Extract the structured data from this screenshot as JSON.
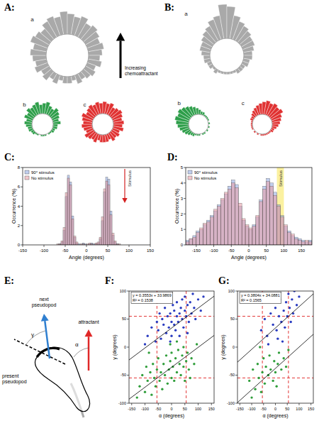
{
  "panel_labels": [
    "A:",
    "B:",
    "C:",
    "D:",
    "E:",
    "F:",
    "G:"
  ],
  "chart_data": [
    {
      "type": "rose",
      "title": "a",
      "color": "#a9a9a9",
      "annotation": "Increasing chemoattractant",
      "bins": [
        -180,
        -170,
        -160,
        -150,
        -140,
        -130,
        -120,
        -110,
        -100,
        -90,
        -80,
        -70,
        -60,
        -50,
        -40,
        -30,
        -20,
        -10,
        0,
        10,
        20,
        30,
        40,
        50,
        60,
        70,
        80,
        90,
        100,
        110,
        120,
        130,
        140,
        150,
        160,
        170,
        180
      ],
      "values": [
        3,
        2,
        4,
        3,
        5,
        4,
        6,
        5,
        6,
        7,
        6,
        8,
        7,
        6,
        8,
        9,
        8,
        10,
        9,
        8,
        9,
        7,
        8,
        7,
        6,
        7,
        6,
        5,
        6,
        4,
        5,
        4,
        3,
        4,
        2,
        3
      ],
      "ylim": [
        0,
        10
      ]
    },
    {
      "type": "rose",
      "title": "b",
      "color": "#2e9e4a",
      "bins": [
        -180,
        -170,
        -160,
        -150,
        -140,
        -130,
        -120,
        -110,
        -100,
        -90,
        -80,
        -70,
        -60,
        -50,
        -40,
        -30,
        -20,
        -10,
        0,
        10,
        20,
        30,
        40,
        50,
        60,
        70,
        80,
        90,
        100,
        110,
        120,
        130,
        140,
        150,
        160,
        170,
        180
      ],
      "values": [
        1,
        0,
        1,
        1,
        2,
        2,
        3,
        3,
        4,
        5,
        4,
        6,
        5,
        7,
        6,
        7,
        8,
        6,
        7,
        8,
        6,
        5,
        7,
        6,
        5,
        4,
        5,
        3,
        3,
        2,
        2,
        1,
        1,
        0,
        1,
        1
      ],
      "ylim": [
        0,
        8
      ]
    },
    {
      "type": "rose",
      "title": "c",
      "color": "#e03232",
      "bins": [
        -180,
        -170,
        -160,
        -150,
        -140,
        -130,
        -120,
        -110,
        -100,
        -90,
        -80,
        -70,
        -60,
        -50,
        -40,
        -30,
        -20,
        -10,
        0,
        10,
        20,
        30,
        40,
        50,
        60,
        70,
        80,
        90,
        100,
        110,
        120,
        130,
        140,
        150,
        160,
        170,
        180
      ],
      "values": [
        5,
        4,
        6,
        5,
        6,
        7,
        5,
        6,
        7,
        6,
        7,
        8,
        6,
        7,
        8,
        7,
        8,
        7,
        8,
        7,
        8,
        6,
        7,
        8,
        7,
        6,
        7,
        6,
        7,
        5,
        6,
        5,
        6,
        4,
        5,
        5
      ],
      "ylim": [
        0,
        8
      ]
    },
    {
      "type": "rose",
      "title": "a",
      "color": "#a9a9a9",
      "bins": [
        -180,
        -170,
        -160,
        -150,
        -140,
        -130,
        -120,
        -110,
        -100,
        -90,
        -80,
        -70,
        -60,
        -50,
        -40,
        -30,
        -20,
        -10,
        0,
        10,
        20,
        30,
        40,
        50,
        60,
        70,
        80,
        90,
        100,
        110,
        120,
        130,
        140,
        150,
        160,
        170,
        180
      ],
      "values": [
        1,
        1,
        1,
        2,
        1,
        2,
        2,
        3,
        3,
        4,
        5,
        5,
        6,
        7,
        8,
        10,
        11,
        16,
        15,
        11,
        9,
        8,
        7,
        6,
        6,
        5,
        4,
        4,
        3,
        3,
        2,
        2,
        2,
        1,
        1,
        1
      ],
      "ylim": [
        0,
        16
      ]
    },
    {
      "type": "rose",
      "title": "b",
      "color": "#2e9e4a",
      "bins": [
        -180,
        -170,
        -160,
        -150,
        -140,
        -130,
        -120,
        -110,
        -100,
        -90,
        -80,
        -70,
        -60,
        -50,
        -40,
        -30,
        -20,
        -10,
        0,
        10,
        20,
        30,
        40,
        50,
        60,
        70,
        80,
        90,
        100,
        110,
        120,
        130,
        140,
        150,
        160,
        170,
        180
      ],
      "values": [
        1,
        1,
        2,
        2,
        3,
        4,
        5,
        6,
        7,
        8,
        9,
        8,
        9,
        8,
        7,
        6,
        5,
        4,
        3,
        2,
        2,
        1,
        1,
        1,
        1,
        0,
        1,
        0,
        1,
        0,
        1,
        0,
        1,
        1,
        0,
        1
      ],
      "ylim": [
        0,
        9
      ]
    },
    {
      "type": "rose",
      "title": "c",
      "color": "#e03232",
      "bins": [
        -180,
        -170,
        -160,
        -150,
        -140,
        -130,
        -120,
        -110,
        -100,
        -90,
        -80,
        -70,
        -60,
        -50,
        -40,
        -30,
        -20,
        -10,
        0,
        10,
        20,
        30,
        40,
        50,
        60,
        70,
        80,
        90,
        100,
        110,
        120,
        130,
        140,
        150,
        160,
        170,
        180
      ],
      "values": [
        1,
        0,
        1,
        0,
        1,
        0,
        1,
        1,
        1,
        1,
        1,
        2,
        2,
        3,
        4,
        5,
        6,
        7,
        8,
        9,
        8,
        9,
        8,
        9,
        7,
        6,
        5,
        4,
        3,
        2,
        2,
        1,
        1,
        1,
        1,
        1
      ],
      "ylim": [
        0,
        9
      ]
    },
    {
      "type": "histogram",
      "x_label": "Angle (degrees)",
      "y_label": "Occurrence (%)",
      "legend": "upper left",
      "bins": [
        -100,
        -95,
        -90,
        -85,
        -80,
        -75,
        -70,
        -65,
        -60,
        -55,
        -50,
        -45,
        -40,
        -35,
        -30,
        -25,
        -20,
        -15,
        -10,
        -5,
        0,
        5,
        10,
        15,
        20,
        25,
        30,
        35,
        40,
        45,
        50,
        55,
        60,
        65,
        70,
        75,
        80,
        85,
        90,
        95,
        100
      ],
      "series": [
        {
          "name": "90° stimulus",
          "color": "#8ea6e0",
          "values": [
            0,
            0,
            0,
            0,
            0,
            0,
            0,
            0.1,
            0.3,
            1.5,
            5.0,
            7.2,
            6.5,
            3.0,
            0.8,
            0.2,
            0.1,
            0,
            0.2,
            0.1,
            0,
            0.1,
            0.2,
            0.1,
            0.1,
            0.2,
            0.6,
            2.5,
            5.5,
            7.0,
            6.8,
            3.5,
            1.0,
            0.3,
            0.1,
            0,
            0,
            0,
            0,
            0
          ]
        },
        {
          "name": "No stimulus",
          "color": "#e89aa4",
          "values": [
            0,
            0,
            0,
            0,
            0,
            0,
            0.1,
            0.1,
            0.4,
            1.8,
            5.4,
            6.9,
            6.2,
            2.7,
            0.9,
            0.3,
            0,
            0.1,
            0.1,
            0,
            0.1,
            0.2,
            0.1,
            0,
            0.2,
            0.3,
            0.8,
            2.9,
            5.8,
            6.6,
            6.2,
            3.1,
            1.2,
            0.4,
            0.1,
            0.1,
            0,
            0,
            0,
            0
          ]
        }
      ],
      "xlim": [
        -150,
        150
      ],
      "xticks": [
        -150,
        -100,
        -50,
        0,
        50,
        100,
        150
      ],
      "ylim": [
        0,
        8
      ],
      "yticks": [
        0,
        2,
        4,
        6,
        8
      ],
      "annotations": [
        {
          "text": "Stimulus",
          "x": 90
        }
      ]
    },
    {
      "type": "histogram",
      "x_label": "Angle (degrees)",
      "y_label": "Occurrence (%)",
      "legend": "upper left",
      "bins": [
        -180,
        -170,
        -160,
        -150,
        -140,
        -130,
        -120,
        -110,
        -100,
        -90,
        -80,
        -70,
        -60,
        -50,
        -40,
        -30,
        -20,
        -10,
        0,
        10,
        20,
        30,
        40,
        50,
        60,
        70,
        80,
        90,
        100,
        110,
        120,
        130,
        140,
        150,
        160,
        170,
        180
      ],
      "series": [
        {
          "name": "90° stimulus",
          "color": "#8ea6e0",
          "values": [
            0.3,
            0.4,
            0.6,
            0.9,
            1.0,
            1.3,
            1.6,
            1.9,
            2.2,
            2.6,
            2.9,
            3.3,
            3.8,
            4.2,
            3.9,
            2.5,
            1.6,
            1.2,
            1.0,
            1.3,
            1.8,
            2.9,
            3.8,
            4.3,
            4.0,
            3.4,
            2.6,
            1.9,
            1.2,
            0.9,
            0.6,
            0.5,
            0.4,
            0.3,
            0.2,
            0.3
          ]
        },
        {
          "name": "No stimulus",
          "color": "#e89aa4",
          "values": [
            0.2,
            0.4,
            0.5,
            0.8,
            1.1,
            1.4,
            1.5,
            1.8,
            2.3,
            2.5,
            3.0,
            3.4,
            3.6,
            4.0,
            3.7,
            2.7,
            1.7,
            1.3,
            1.1,
            1.2,
            1.9,
            2.8,
            3.6,
            4.1,
            3.8,
            3.2,
            2.5,
            1.8,
            1.3,
            0.8,
            0.7,
            0.4,
            0.3,
            0.2,
            0.3,
            0.2
          ]
        }
      ],
      "xlim": [
        -180,
        180
      ],
      "xticks": [
        -150,
        -100,
        -50,
        0,
        50,
        100,
        150
      ],
      "ylim": [
        0,
        5
      ],
      "yticks": [
        0,
        1,
        2,
        3,
        4,
        5
      ],
      "annotations": [
        {
          "text": "Stimulus",
          "x_range": [
            80,
            100
          ]
        }
      ]
    },
    {
      "type": "scatter",
      "x_label": "α (degrees)",
      "y_label": "γ (degrees)",
      "annotations": [
        "y = 0.3553x + 33.9869",
        "R² = 0.1538"
      ],
      "fits": [
        {
          "slope": 0.3553,
          "intercept": 33.9869
        },
        {
          "slope": 0.3553,
          "intercept": -36
        }
      ],
      "ref_lines": {
        "x": [
          -55,
          55
        ],
        "y": [
          -55,
          55
        ]
      },
      "series": [
        {
          "color": "#2a3cc0",
          "x": [
            -90,
            -75,
            -60,
            -55,
            -50,
            -45,
            -40,
            -35,
            -30,
            -25,
            -20,
            -15,
            -10,
            -5,
            0,
            0,
            5,
            10,
            10,
            15,
            20,
            20,
            25,
            30,
            30,
            35,
            40,
            40,
            45,
            50,
            50,
            55,
            60,
            65,
            70,
            75,
            80,
            85,
            90,
            100,
            110,
            120,
            -100,
            -5,
            60
          ],
          "values": [
            20,
            35,
            10,
            45,
            30,
            60,
            15,
            50,
            40,
            70,
            25,
            55,
            35,
            60,
            20,
            45,
            75,
            40,
            65,
            30,
            55,
            80,
            45,
            60,
            20,
            70,
            50,
            85,
            35,
            65,
            90,
            55,
            75,
            45,
            80,
            60,
            95,
            70,
            50,
            85,
            65,
            90,
            5,
            10,
            25
          ]
        },
        {
          "color": "#2f9e3a",
          "x": [
            -120,
            -110,
            -100,
            -95,
            -90,
            -80,
            -75,
            -70,
            -65,
            -60,
            -55,
            -50,
            -45,
            -40,
            -35,
            -30,
            -25,
            -20,
            -15,
            -10,
            -5,
            0,
            0,
            5,
            10,
            15,
            20,
            25,
            30,
            35,
            40,
            45,
            50,
            55,
            60,
            65,
            75,
            85,
            95,
            -130,
            -85,
            -5,
            20,
            45,
            70
          ],
          "values": [
            -70,
            -50,
            -80,
            -35,
            -60,
            -45,
            -85,
            -30,
            -55,
            -70,
            -40,
            -20,
            -60,
            -45,
            -75,
            -30,
            -50,
            -15,
            -65,
            -40,
            -25,
            -55,
            -10,
            -35,
            -60,
            -20,
            -45,
            -5,
            -30,
            -50,
            -15,
            -35,
            -60,
            -25,
            -10,
            -40,
            -20,
            -30,
            5,
            -90,
            -10,
            5,
            10,
            0,
            -55
          ]
        }
      ],
      "xlim": [
        -160,
        160
      ],
      "xticks": [
        -150,
        -100,
        -50,
        0,
        50,
        100,
        150
      ],
      "ylim": [
        -100,
        100
      ],
      "yticks": [
        -100,
        -50,
        0,
        50,
        100
      ]
    },
    {
      "type": "scatter",
      "x_label": "α (degrees)",
      "y_label": "γ (degrees)",
      "annotations": [
        "y = 0.3804x + 34.0881",
        "R² = 0.1565"
      ],
      "fits": [
        {
          "slope": 0.3804,
          "intercept": 34.0881
        },
        {
          "slope": 0.3804,
          "intercept": -38
        }
      ],
      "ref_lines": {
        "x": [
          -55,
          55
        ],
        "y": [
          -55,
          55
        ]
      },
      "series": [
        {
          "color": "#2a3cc0",
          "x": [
            -60,
            -45,
            -35,
            -20,
            -10,
            0,
            5,
            15,
            20,
            25,
            35,
            40,
            45,
            50,
            55,
            60,
            65,
            70,
            75,
            80,
            90,
            100,
            -30,
            30,
            10
          ],
          "values": [
            30,
            50,
            20,
            60,
            40,
            70,
            30,
            55,
            85,
            45,
            65,
            35,
            80,
            55,
            95,
            70,
            45,
            85,
            60,
            100,
            75,
            90,
            5,
            10,
            15
          ]
        },
        {
          "color": "#2f9e3a",
          "x": [
            -110,
            -95,
            -85,
            -75,
            -70,
            -60,
            -55,
            -50,
            -45,
            -40,
            -30,
            -25,
            -20,
            -10,
            -5,
            0,
            10,
            15,
            25,
            35,
            45,
            55,
            -100,
            -65,
            5
          ],
          "values": [
            -60,
            -40,
            -75,
            -30,
            -55,
            -80,
            -45,
            -20,
            -65,
            -35,
            -50,
            -15,
            -40,
            -60,
            -25,
            -45,
            -30,
            -10,
            -40,
            -20,
            -35,
            -5,
            -90,
            0,
            -70
          ]
        }
      ],
      "xlim": [
        -160,
        160
      ],
      "xticks": [
        -150,
        -100,
        -50,
        0,
        50,
        100,
        150
      ],
      "ylim": [
        -100,
        100
      ],
      "yticks": [
        -100,
        -50,
        0,
        50,
        100
      ]
    }
  ],
  "diagram": {
    "next_label": "next pseudopod",
    "present_label": "present pseudopod",
    "attractant_label": "attractant",
    "gamma": "γ",
    "alpha": "α"
  }
}
